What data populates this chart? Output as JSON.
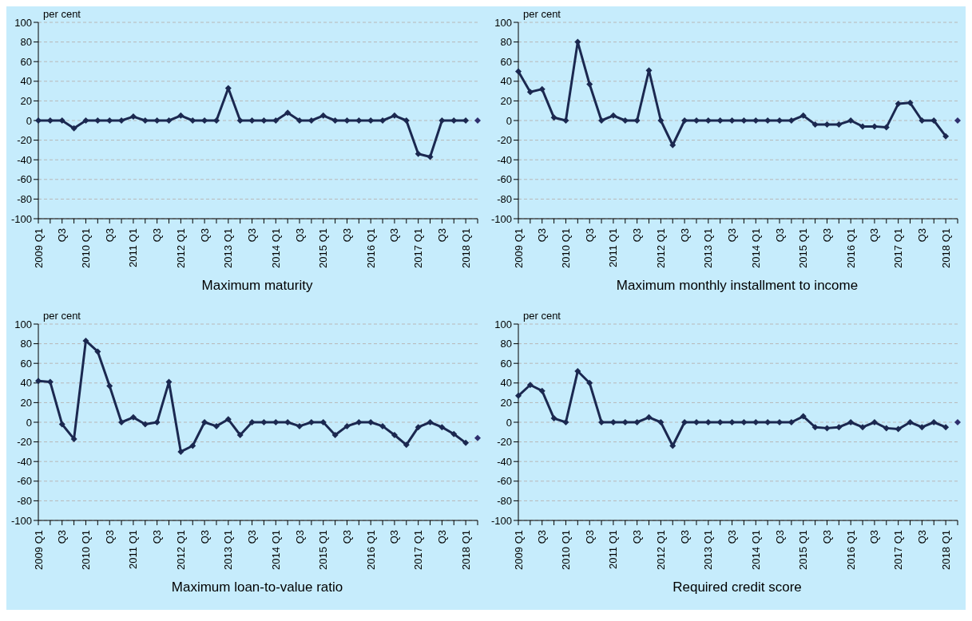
{
  "chart_data": [
    {
      "type": "line",
      "title": "Maximum maturity",
      "ylabel": "per cent",
      "categories": [
        "2009 Q1",
        null,
        "Q3",
        null,
        "2010 Q1",
        null,
        "Q3",
        null,
        "2011 Q1",
        null,
        "Q3",
        null,
        "2012 Q1",
        null,
        "Q3",
        null,
        "2013 Q1",
        null,
        "Q3",
        null,
        "2014 Q1",
        null,
        "Q3",
        null,
        "2015 Q1",
        null,
        "Q3",
        null,
        "2016 Q1",
        null,
        "Q3",
        null,
        "2017 Q1",
        null,
        "Q3",
        null,
        "2018 Q1",
        null
      ],
      "ylim": [
        -100,
        100
      ],
      "yticks": [
        -100,
        -80,
        -60,
        -40,
        -20,
        0,
        20,
        40,
        60,
        80,
        100
      ],
      "grid": "y",
      "marker": "diamond",
      "line_style": "solid",
      "series": [
        {
          "color": "#1b2850",
          "values": [
            0,
            0,
            0,
            -8,
            0,
            0,
            0,
            0,
            4,
            0,
            0,
            0,
            5,
            0,
            0,
            0,
            33,
            0,
            0,
            0,
            0,
            8,
            0,
            0,
            5,
            0,
            0,
            0,
            0,
            0,
            5,
            0,
            -34,
            -37,
            0,
            0,
            0,
            null
          ]
        },
        {
          "type": "scatter",
          "color": "#2e2f6e",
          "values": [
            null,
            null,
            null,
            null,
            null,
            null,
            null,
            null,
            null,
            null,
            null,
            null,
            null,
            null,
            null,
            null,
            null,
            null,
            null,
            null,
            null,
            null,
            null,
            null,
            null,
            null,
            null,
            null,
            null,
            null,
            null,
            null,
            null,
            null,
            null,
            null,
            null,
            0
          ]
        }
      ]
    },
    {
      "type": "line",
      "title": "Maximum monthly installment to income",
      "ylabel": "per cent",
      "categories": [
        "2009 Q1",
        null,
        "Q3",
        null,
        "2010 Q1",
        null,
        "Q3",
        null,
        "2011 Q1",
        null,
        "Q3",
        null,
        "2012 Q1",
        null,
        "Q3",
        null,
        "2013 Q1",
        null,
        "Q3",
        null,
        "2014 Q1",
        null,
        "Q3",
        null,
        "2015 Q1",
        null,
        "Q3",
        null,
        "2016 Q1",
        null,
        "Q3",
        null,
        "2017 Q1",
        null,
        "Q3",
        null,
        "2018 Q1",
        null
      ],
      "ylim": [
        -100,
        100
      ],
      "yticks": [
        -100,
        -80,
        -60,
        -40,
        -20,
        0,
        20,
        40,
        60,
        80,
        100
      ],
      "grid": "y",
      "marker": "diamond",
      "line_style": "solid",
      "series": [
        {
          "color": "#1b2850",
          "values": [
            50,
            29,
            32,
            3,
            0,
            80,
            37,
            0,
            5,
            0,
            0,
            51,
            0,
            -25,
            0,
            0,
            0,
            0,
            0,
            0,
            0,
            0,
            0,
            0,
            5,
            -4,
            -4,
            -4,
            0,
            -6,
            -6,
            -7,
            17,
            18,
            0,
            0,
            -16,
            null
          ]
        },
        {
          "type": "scatter",
          "color": "#2e2f6e",
          "values": [
            null,
            null,
            null,
            null,
            null,
            null,
            null,
            null,
            null,
            null,
            null,
            null,
            null,
            null,
            null,
            null,
            null,
            null,
            null,
            null,
            null,
            null,
            null,
            null,
            null,
            null,
            null,
            null,
            null,
            null,
            null,
            null,
            null,
            null,
            null,
            null,
            null,
            0
          ]
        }
      ]
    },
    {
      "type": "line",
      "title": "Maximum loan-to-value ratio",
      "ylabel": "per cent",
      "categories": [
        "2009 Q1",
        null,
        "Q3",
        null,
        "2010 Q1",
        null,
        "Q3",
        null,
        "2011 Q1",
        null,
        "Q3",
        null,
        "2012 Q1",
        null,
        "Q3",
        null,
        "2013 Q1",
        null,
        "Q3",
        null,
        "2014 Q1",
        null,
        "Q3",
        null,
        "2015 Q1",
        null,
        "Q3",
        null,
        "2016 Q1",
        null,
        "Q3",
        null,
        "2017 Q1",
        null,
        "Q3",
        null,
        "2018 Q1",
        null
      ],
      "ylim": [
        -100,
        100
      ],
      "yticks": [
        -100,
        -80,
        -60,
        -40,
        -20,
        0,
        20,
        40,
        60,
        80,
        100
      ],
      "grid": "y",
      "marker": "diamond",
      "line_style": "solid",
      "series": [
        {
          "color": "#1b2850",
          "values": [
            42,
            41,
            -2,
            -17,
            83,
            72,
            37,
            0,
            5,
            -2,
            0,
            41,
            -30,
            -24,
            0,
            -4,
            3,
            -13,
            0,
            0,
            0,
            0,
            -4,
            0,
            0,
            -13,
            -4,
            0,
            0,
            -4,
            -13,
            -23,
            -5,
            0,
            -5,
            -12,
            -21,
            null
          ]
        },
        {
          "type": "scatter",
          "color": "#2e2f6e",
          "values": [
            null,
            null,
            null,
            null,
            null,
            null,
            null,
            null,
            null,
            null,
            null,
            null,
            null,
            null,
            null,
            null,
            null,
            null,
            null,
            null,
            null,
            null,
            null,
            null,
            null,
            null,
            null,
            null,
            null,
            null,
            null,
            null,
            null,
            null,
            null,
            null,
            null,
            -16
          ]
        }
      ]
    },
    {
      "type": "line",
      "title": "Required credit score",
      "ylabel": "per cent",
      "categories": [
        "2009 Q1",
        null,
        "Q3",
        null,
        "2010 Q1",
        null,
        "Q3",
        null,
        "2011 Q1",
        null,
        "Q3",
        null,
        "2012 Q1",
        null,
        "Q3",
        null,
        "2013 Q1",
        null,
        "Q3",
        null,
        "2014 Q1",
        null,
        "Q3",
        null,
        "2015 Q1",
        null,
        "Q3",
        null,
        "2016 Q1",
        null,
        "Q3",
        null,
        "2017 Q1",
        null,
        "Q3",
        null,
        "2018 Q1",
        null
      ],
      "ylim": [
        -100,
        100
      ],
      "yticks": [
        -100,
        -80,
        -60,
        -40,
        -20,
        0,
        20,
        40,
        60,
        80,
        100
      ],
      "grid": "y",
      "marker": "diamond",
      "line_style": "solid",
      "series": [
        {
          "color": "#1b2850",
          "values": [
            27,
            38,
            32,
            4,
            0,
            52,
            40,
            0,
            0,
            0,
            0,
            5,
            0,
            -24,
            0,
            0,
            0,
            0,
            0,
            0,
            0,
            0,
            0,
            0,
            6,
            -5,
            -6,
            -5,
            0,
            -5,
            0,
            -6,
            -7,
            0,
            -5,
            0,
            -5,
            null
          ]
        },
        {
          "type": "scatter",
          "color": "#2e2f6e",
          "values": [
            null,
            null,
            null,
            null,
            null,
            null,
            null,
            null,
            null,
            null,
            null,
            null,
            null,
            null,
            null,
            null,
            null,
            null,
            null,
            null,
            null,
            null,
            null,
            null,
            null,
            null,
            null,
            null,
            null,
            null,
            null,
            null,
            null,
            null,
            null,
            null,
            null,
            0
          ]
        }
      ]
    }
  ]
}
